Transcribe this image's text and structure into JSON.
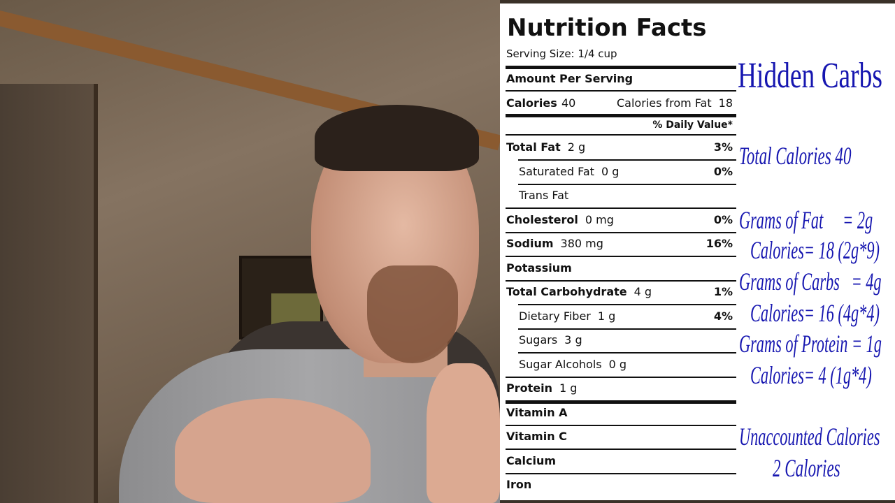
{
  "label": {
    "title": "Nutrition Facts",
    "serving_size": "Serving Size: 1/4 cup",
    "amount_per_serving": "Amount Per Serving",
    "calories_label": "Calories",
    "calories_value": "40",
    "calories_from_fat": "Calories from Fat",
    "calories_from_fat_value": "18",
    "daily_value_header": "% Daily Value*",
    "rows": [
      {
        "name": "Total Fat",
        "amount": "2 g",
        "dv": "3%",
        "bold": true,
        "indent": false
      },
      {
        "name": "Saturated Fat",
        "amount": "0 g",
        "dv": "0%",
        "bold": false,
        "indent": true
      },
      {
        "name": "Trans Fat",
        "amount": "",
        "dv": "",
        "bold": false,
        "indent": true
      },
      {
        "name": "Cholesterol",
        "amount": "0 mg",
        "dv": "0%",
        "bold": true,
        "indent": false
      },
      {
        "name": "Sodium",
        "amount": "380 mg",
        "dv": "16%",
        "bold": true,
        "indent": false
      },
      {
        "name": "Potassium",
        "amount": "",
        "dv": "",
        "bold": true,
        "indent": false
      },
      {
        "name": "Total Carbohydrate",
        "amount": "4 g",
        "dv": "1%",
        "bold": true,
        "indent": false
      },
      {
        "name": "Dietary Fiber",
        "amount": "1 g",
        "dv": "4%",
        "bold": false,
        "indent": true
      },
      {
        "name": "Sugars",
        "amount": "3 g",
        "dv": "",
        "bold": false,
        "indent": true
      },
      {
        "name": "Sugar Alcohols",
        "amount": "0 g",
        "dv": "",
        "bold": false,
        "indent": true
      },
      {
        "name": "Protein",
        "amount": "1 g",
        "dv": "",
        "bold": true,
        "indent": false
      },
      {
        "name": "Vitamin A",
        "amount": "",
        "dv": "",
        "bold": true,
        "indent": false
      },
      {
        "name": "Vitamin C",
        "amount": "",
        "dv": "",
        "bold": true,
        "indent": false
      },
      {
        "name": "Calcium",
        "amount": "",
        "dv": "",
        "bold": true,
        "indent": false
      },
      {
        "name": "Iron",
        "amount": "",
        "dv": "",
        "bold": true,
        "indent": false
      }
    ]
  },
  "annotations": {
    "heading": "Hidden Carbs",
    "total_calories": "Total Calories 40",
    "fat_grams": "Grams of Fat     = 2g",
    "fat_calories": "Calories= 18 (2g*9)",
    "carb_grams": "Grams of Carbs   = 4g",
    "carb_calories": "Calories= 16 (4g*4)",
    "protein_grams": "Grams of Protein = 1g",
    "protein_calories": "Calories= 4 (1g*4)",
    "unaccounted": "Unaccounted Calories",
    "unaccounted_value": "2 Calories",
    "color": "#1616b0"
  }
}
